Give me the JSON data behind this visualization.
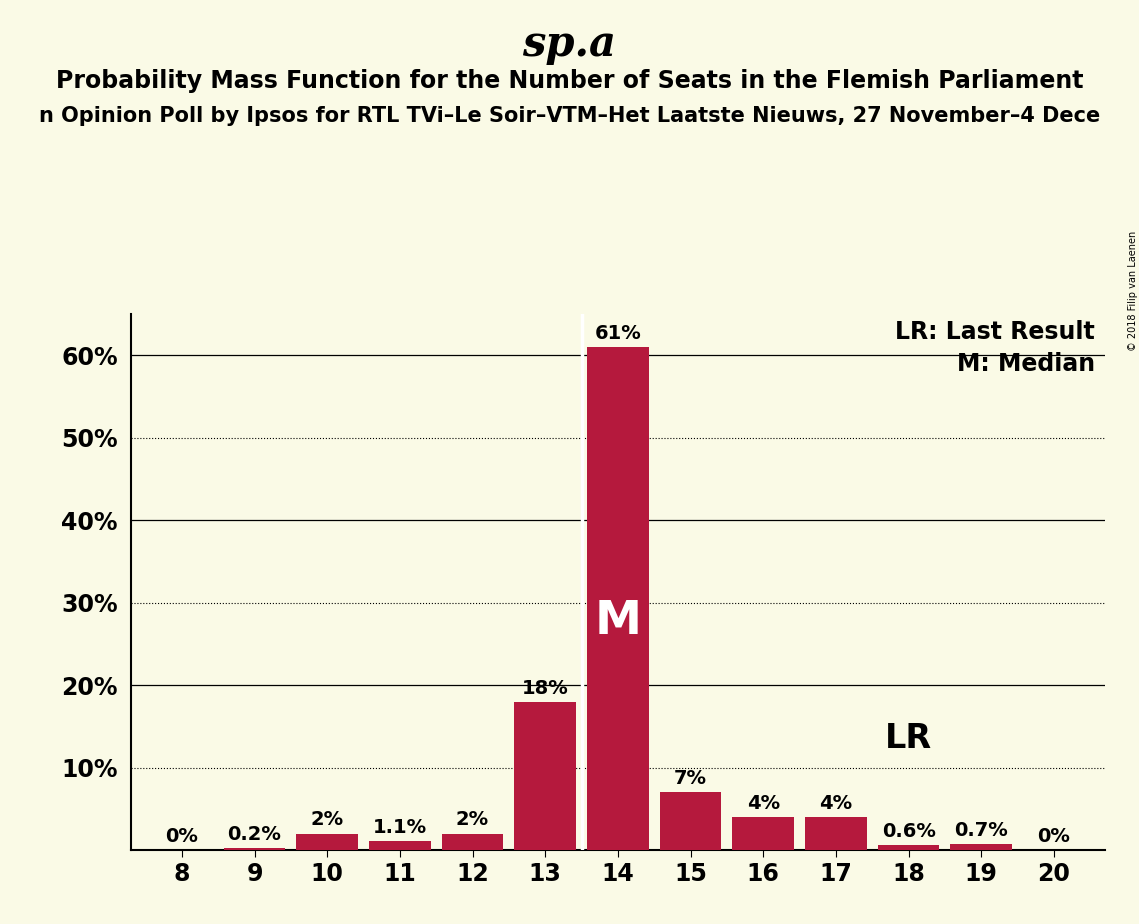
{
  "title": "sp.a",
  "subtitle1": "Probability Mass Function for the Number of Seats in the Flemish Parliament",
  "subtitle2": "n Opinion Poll by Ipsos for RTL TVi–Le Soir–VTM–Het Laatste Nieuws, 27 November–4 Dece",
  "watermark": "© 2018 Filip van Laenen",
  "seats": [
    8,
    9,
    10,
    11,
    12,
    13,
    14,
    15,
    16,
    17,
    18,
    19,
    20
  ],
  "probabilities": [
    0.0,
    0.2,
    2.0,
    1.1,
    2.0,
    18.0,
    61.0,
    7.0,
    4.0,
    4.0,
    0.6,
    0.7,
    0.0
  ],
  "bar_color": "#b5193d",
  "background_color": "#fafae6",
  "median_seat": 14,
  "lr_seat": 18,
  "lr_label": "LR",
  "median_label": "M",
  "legend_lr": "LR: Last Result",
  "legend_m": "M: Median",
  "ylim_max": 65,
  "yticks": [
    0,
    10,
    20,
    30,
    40,
    50,
    60
  ],
  "solid_gridlines": [
    20,
    40,
    60
  ],
  "dotted_gridlines": [
    10,
    30,
    50
  ],
  "title_fontsize": 30,
  "subtitle1_fontsize": 17,
  "subtitle2_fontsize": 15,
  "bar_label_fontsize": 14,
  "axis_fontsize": 17,
  "legend_fontsize": 17,
  "M_fontsize": 34,
  "LR_fontsize": 24
}
